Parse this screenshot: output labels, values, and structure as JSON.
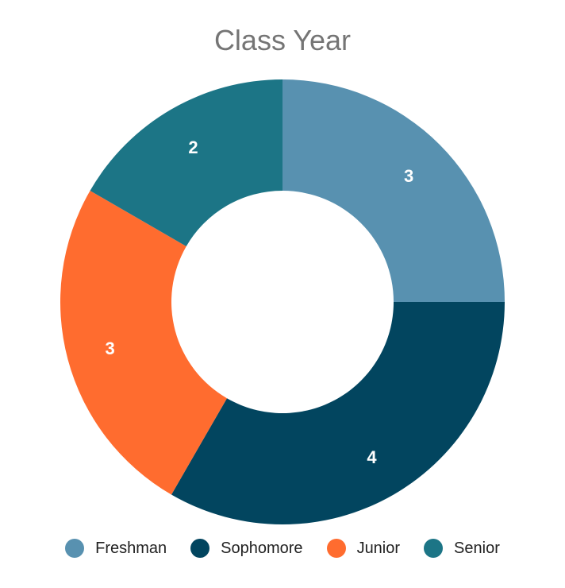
{
  "chart_data": {
    "type": "pie",
    "variant": "donut",
    "title": "Class Year",
    "categories": [
      "Freshman",
      "Sophomore",
      "Junior",
      "Senior"
    ],
    "values": [
      3,
      4,
      3,
      2
    ],
    "colors": [
      "#5891b0",
      "#02455f",
      "#ff6c2f",
      "#1c7586"
    ],
    "data_labels": [
      "3",
      "4",
      "3",
      "2"
    ],
    "legend_position": "bottom"
  }
}
